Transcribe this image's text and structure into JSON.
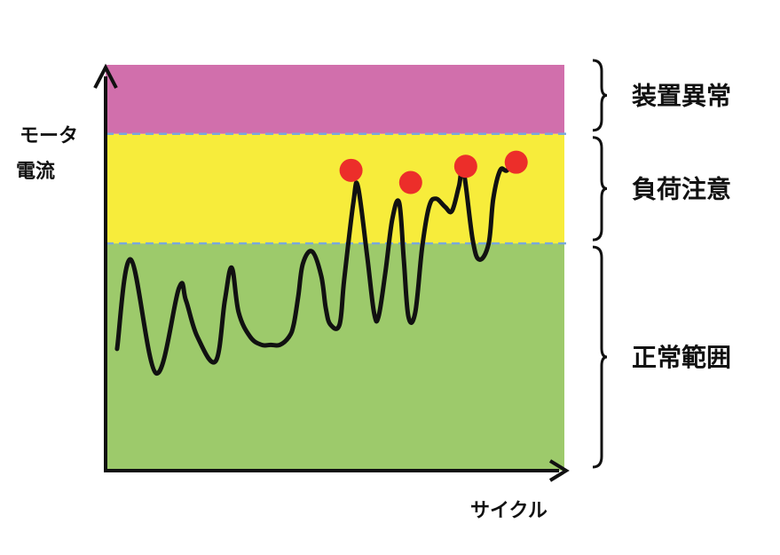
{
  "chart_data": {
    "type": "line",
    "xlabel": "サイクル",
    "ylabel_lines": [
      "モータ",
      "電流"
    ],
    "xlim": [
      0,
      100
    ],
    "ylim": [
      0,
      100
    ],
    "zones": [
      {
        "label": "正常範囲",
        "from": 0,
        "to": 56,
        "color": "#9dca6b"
      },
      {
        "label": "負荷注意",
        "from": 56,
        "to": 83,
        "color": "#f7ec3b"
      },
      {
        "label": "装置異常",
        "from": 83,
        "to": 100,
        "color": "#d16fac"
      }
    ],
    "threshold_lines": [
      56,
      83
    ],
    "threshold_color": "#7aa9d9",
    "series": [
      {
        "line_color": "#111111",
        "x": [
          2.5,
          5.5,
          11,
          16,
          17.5,
          20,
          24,
          26,
          27.5,
          29,
          31.5,
          34,
          36,
          38,
          40,
          41,
          42,
          43,
          45,
          47,
          48,
          49,
          51,
          52,
          54,
          55,
          57,
          58.5,
          59.5,
          61,
          62.5,
          64,
          65,
          66,
          67.5,
          69,
          70.5,
          72,
          74,
          75.5,
          77,
          78,
          80,
          81.5,
          83.5,
          84.5,
          86,
          87.5,
          89.5,
          91
        ],
        "y": [
          30,
          52,
          24,
          45,
          42,
          33,
          27,
          42,
          50,
          39,
          33,
          31,
          31,
          31,
          33,
          36,
          43,
          51,
          54,
          48,
          40,
          36,
          36,
          47,
          66,
          70,
          53,
          39,
          38,
          49,
          62,
          66,
          52,
          38,
          39,
          55,
          65,
          67,
          65,
          64,
          70,
          74,
          57,
          52,
          56,
          67,
          74,
          74,
          77,
          76
        ]
      }
    ],
    "highlight_points": [
      {
        "x": 53.5,
        "y": 74,
        "color": "#ec2e2a"
      },
      {
        "x": 66.5,
        "y": 71,
        "color": "#ec2e2a"
      },
      {
        "x": 78.5,
        "y": 75,
        "color": "#ec2e2a"
      },
      {
        "x": 89.5,
        "y": 76,
        "color": "#ec2e2a"
      }
    ]
  }
}
